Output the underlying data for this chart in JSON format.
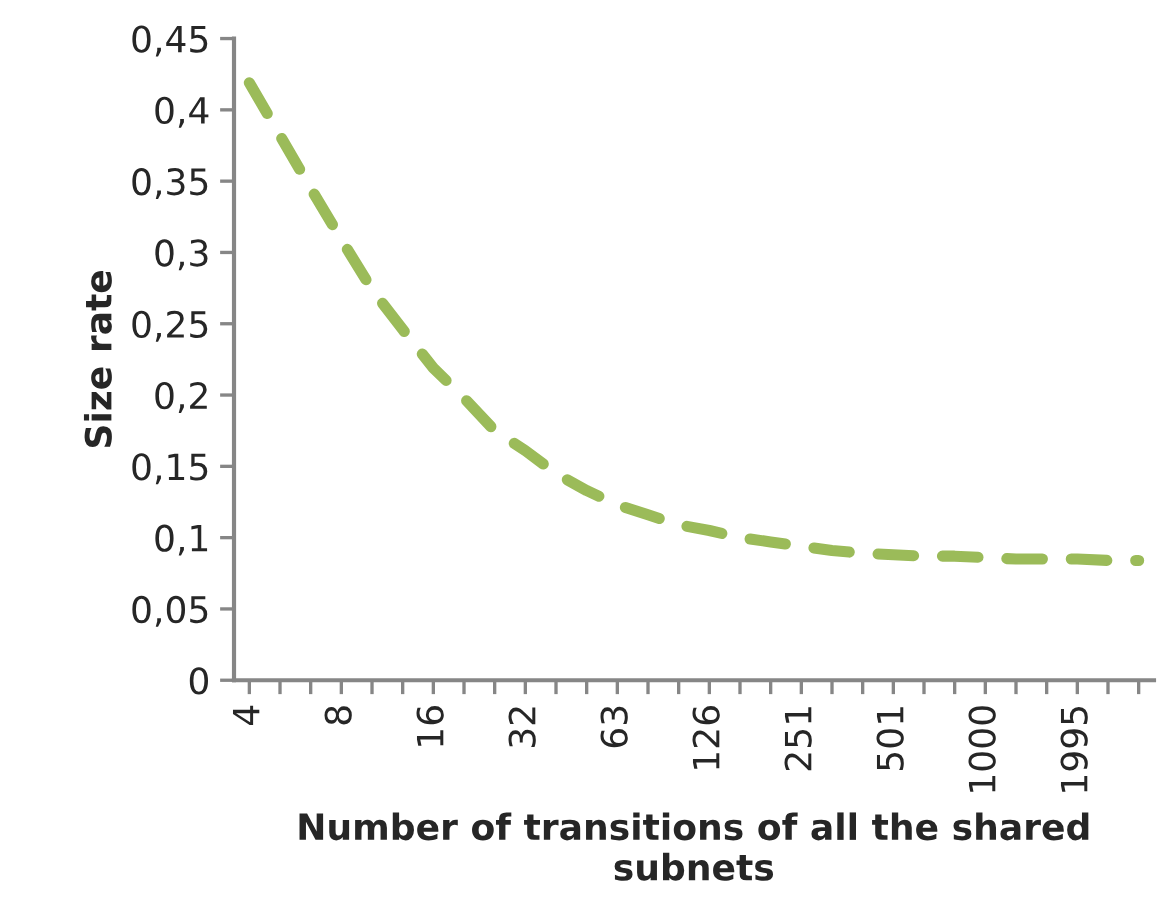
{
  "chart_data": {
    "type": "line",
    "xlabel": "Number of transitions of all the shared subnets",
    "ylabel": "Size rate",
    "categories": [
      "4",
      null,
      null,
      "8",
      null,
      null,
      "16",
      null,
      null,
      "32",
      null,
      null,
      "63",
      null,
      null,
      "126",
      null,
      null,
      "251",
      null,
      null,
      "501",
      null,
      null,
      "1000",
      null,
      null,
      "1995",
      null,
      null
    ],
    "series": [
      {
        "color": "#9bbb59",
        "values": [
          0.419,
          0.382,
          0.345,
          0.309,
          0.274,
          0.246,
          0.219,
          0.198,
          0.175,
          0.161,
          0.145,
          0.133,
          0.123,
          0.116,
          0.109,
          0.105,
          0.1,
          0.097,
          0.094,
          0.091,
          0.089,
          0.088,
          0.087,
          0.087,
          0.086,
          0.085,
          0.085,
          0.085,
          0.084,
          0.084
        ]
      }
    ],
    "ylim": [
      0,
      0.45
    ],
    "yticks": [
      0,
      {
        "value": 0.05,
        "label": "0,05"
      },
      {
        "value": 0.1,
        "label": "0,1"
      },
      {
        "value": 0.15,
        "label": "0,15"
      },
      {
        "value": 0.2,
        "label": "0,2"
      },
      {
        "value": 0.25,
        "label": "0,25"
      },
      {
        "value": 0.3,
        "label": "0,3"
      },
      {
        "value": 0.35,
        "label": "0,35"
      },
      {
        "value": 0.4,
        "label": "0,4"
      },
      {
        "value": 0.45,
        "label": "0,45"
      }
    ],
    "grid": false,
    "legend": false,
    "marker": "none",
    "line_style": "dashed"
  }
}
